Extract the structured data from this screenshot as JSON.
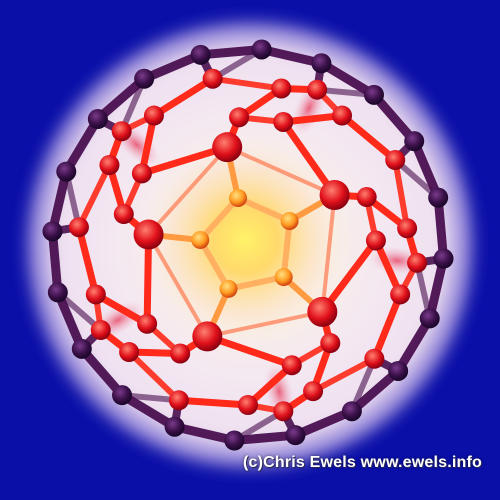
{
  "image": {
    "subject": "buckminsterfullerene-c60",
    "colors": {
      "background": "#0a0fa8",
      "halo": "#f3e6f4",
      "inner_glow": "#ffe24a",
      "bond_front": "#ff2a1a",
      "bond_back": "#4a1050",
      "atom_back": "#3a1048"
    }
  },
  "credit": {
    "text": "(c)Chris Ewels www.ewels.info"
  }
}
